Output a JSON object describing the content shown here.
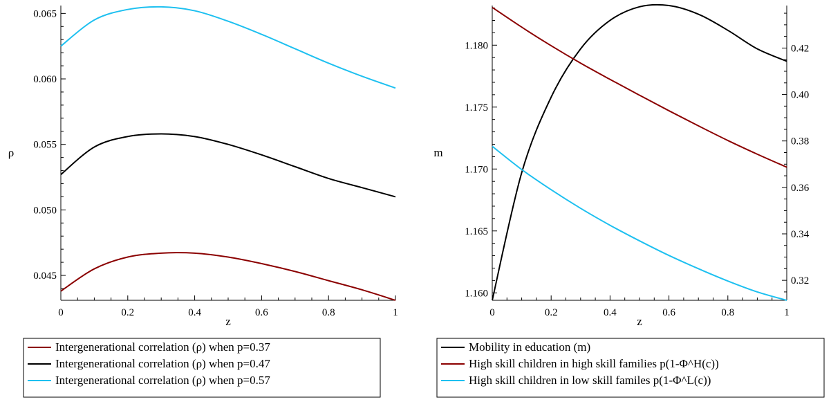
{
  "chart_data": [
    {
      "type": "line",
      "xlabel": "z",
      "ylabel": "ρ",
      "xlim": [
        0,
        1
      ],
      "ylim": [
        0.0431,
        0.0656
      ],
      "xticks": [
        0,
        0.2,
        0.4,
        0.6,
        0.8,
        1
      ],
      "xtick_labels": [
        "0",
        "0.2",
        "0.4",
        "0.6",
        "0.8",
        "1"
      ],
      "yticks": [
        0.045,
        0.05,
        0.055,
        0.06,
        0.065
      ],
      "ytick_labels": [
        "0.045",
        "0.050",
        "0.055",
        "0.060",
        "0.065"
      ],
      "legend_position": "bottom",
      "x": [
        0,
        0.1,
        0.2,
        0.3,
        0.4,
        0.5,
        0.6,
        0.7,
        0.8,
        0.9,
        1
      ],
      "series": [
        {
          "name": "Intergenerational correlation (ρ) when p=0.37",
          "color": "#8b0000",
          "values": [
            0.0438,
            0.0455,
            0.0464,
            0.0467,
            0.0467,
            0.0464,
            0.0459,
            0.0453,
            0.0446,
            0.0439,
            0.0431
          ]
        },
        {
          "name": "Intergenerational correlation (ρ) when p=0.47",
          "color": "#000000",
          "values": [
            0.0527,
            0.0548,
            0.0556,
            0.0558,
            0.0556,
            0.055,
            0.0542,
            0.0533,
            0.0524,
            0.0517,
            0.051
          ]
        },
        {
          "name": "Intergenerational correlation (ρ) when p=0.57",
          "color": "#1ec0f0",
          "values": [
            0.0625,
            0.0645,
            0.0653,
            0.0655,
            0.0652,
            0.0644,
            0.0634,
            0.0623,
            0.0612,
            0.0602,
            0.0593
          ]
        }
      ]
    },
    {
      "type": "line",
      "xlabel": "z",
      "ylabel": "m",
      "xlim": [
        0,
        1
      ],
      "ylim": [
        1.1594,
        1.1832
      ],
      "y2lim": [
        0.3114,
        0.4383
      ],
      "xticks": [
        0,
        0.2,
        0.4,
        0.6,
        0.8,
        1
      ],
      "xtick_labels": [
        "0",
        "0.2",
        "0.4",
        "0.6",
        "0.8",
        "1"
      ],
      "yticks": [
        1.16,
        1.165,
        1.17,
        1.175,
        1.18
      ],
      "ytick_labels": [
        "1.160",
        "1.165",
        "1.170",
        "1.175",
        "1.180"
      ],
      "y2ticks": [
        0.32,
        0.34,
        0.36,
        0.38,
        0.4,
        0.42
      ],
      "y2tick_labels": [
        "0.32",
        "0.34",
        "0.36",
        "0.38",
        "0.40",
        "0.42"
      ],
      "legend_position": "bottom",
      "x": [
        0,
        0.1,
        0.2,
        0.3,
        0.4,
        0.5,
        0.6,
        0.7,
        0.8,
        0.9,
        1
      ],
      "series": [
        {
          "name": "Mobility in education (m)",
          "color": "#000000",
          "axis": "left",
          "values": [
            1.1594,
            1.1697,
            1.1758,
            1.1797,
            1.182,
            1.1831,
            1.1832,
            1.1825,
            1.1812,
            1.1797,
            1.1787
          ]
        },
        {
          "name": "High skill children in high skill families p(1-Φ^H(c))",
          "color": "#8b0000",
          "axis": "right",
          "values": [
            0.4375,
            0.429,
            0.421,
            0.4135,
            0.4065,
            0.3997,
            0.393,
            0.3865,
            0.3802,
            0.3743,
            0.3687
          ]
        },
        {
          "name": "High skill children in low skill familes p(1-Φ^L(c))",
          "color": "#1ec0f0",
          "axis": "right",
          "values": [
            0.3777,
            0.3677,
            0.359,
            0.351,
            0.3437,
            0.337,
            0.3307,
            0.325,
            0.3197,
            0.315,
            0.3114
          ]
        }
      ]
    }
  ]
}
